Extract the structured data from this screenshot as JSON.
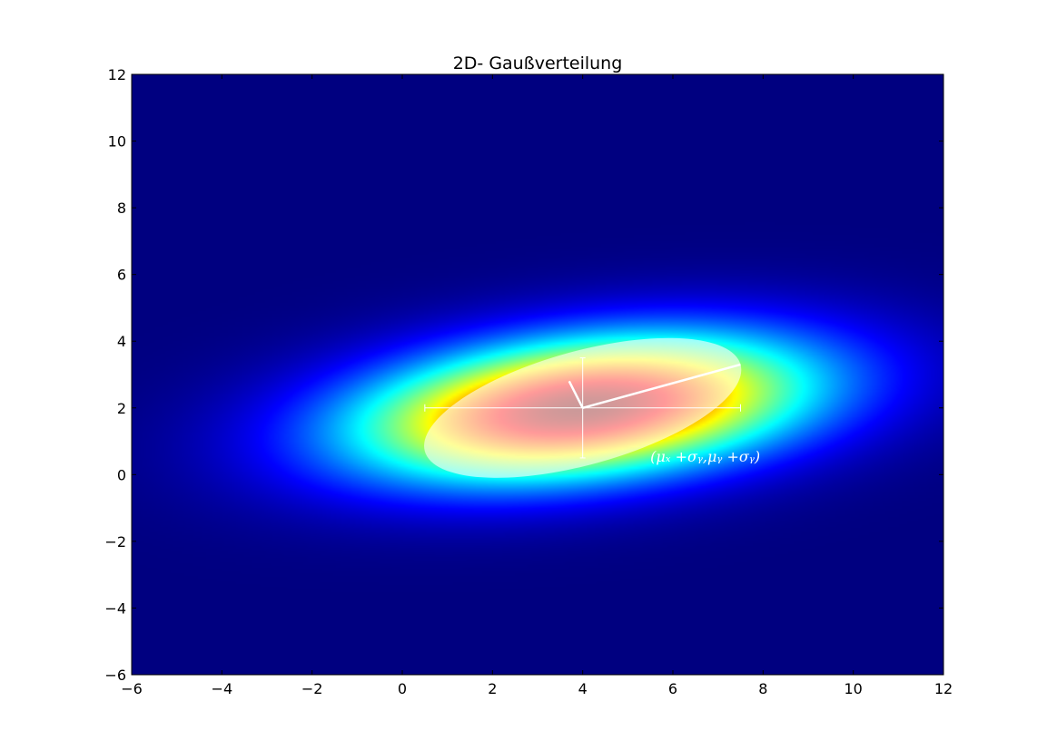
{
  "chart_data": {
    "type": "heatmap",
    "title": "2D- Gaußverteilung",
    "xlabel": "",
    "ylabel": "",
    "xlim": [
      -6,
      12
    ],
    "ylim": [
      -6,
      12
    ],
    "x_ticks": [
      -6,
      -4,
      -2,
      0,
      2,
      4,
      6,
      8,
      10,
      12
    ],
    "y_ticks": [
      -6,
      -4,
      -2,
      0,
      2,
      4,
      6,
      8,
      10,
      12
    ],
    "x_tick_labels": [
      "−6",
      "−4",
      "−2",
      "0",
      "2",
      "4",
      "6",
      "8",
      "10",
      "12"
    ],
    "y_tick_labels": [
      "−6",
      "−4",
      "−2",
      "0",
      "2",
      "4",
      "6",
      "8",
      "10",
      "12"
    ],
    "grid": false,
    "colormap": "jet",
    "colors": {
      "background_low": "#00007f",
      "overlay": "#ffffff",
      "frame": "#000000"
    },
    "distribution": {
      "mean": [
        4,
        2
      ],
      "sigma_x": 3.5,
      "sigma_y": 1.5,
      "correlation": 0.3
    },
    "errorbars": {
      "center": [
        4,
        2
      ],
      "x_range": [
        0.5,
        7.5
      ],
      "y_range": [
        0.5,
        3.5
      ]
    },
    "ellipse": {
      "center": [
        4,
        2
      ],
      "fill": "#ffffff",
      "opacity": 0.6
    },
    "axis_lines": [
      {
        "from": [
          4,
          2
        ],
        "to": [
          7.5,
          3.3
        ]
      },
      {
        "from": [
          4,
          2
        ],
        "to": [
          3.7,
          2.8
        ]
      }
    ],
    "annotation": {
      "text": "(μₓ +σᵧ,μᵧ +σᵧ)",
      "position": [
        5.5,
        0.5
      ]
    }
  }
}
